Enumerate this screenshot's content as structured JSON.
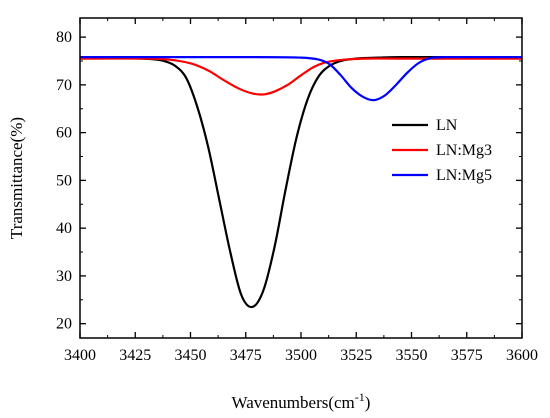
{
  "chart_data": {
    "type": "line",
    "xlabel": "Wavenumbers(cm",
    "xlabel_sup": "-1",
    "xlabel_tail": ")",
    "ylabel": "Transmittance(%)",
    "xlim": [
      3400,
      3600
    ],
    "ylim": [
      17,
      84
    ],
    "xticks": [
      3400,
      3425,
      3450,
      3475,
      3500,
      3525,
      3550,
      3575,
      3600
    ],
    "yticks": [
      20,
      30,
      40,
      50,
      60,
      70,
      80
    ],
    "grid": false,
    "legend_position": "right",
    "series": [
      {
        "name": "LN",
        "color": "#000000",
        "x": [
          3400,
          3420,
          3432,
          3438,
          3443,
          3448,
          3453,
          3458,
          3463,
          3468,
          3473,
          3478,
          3483,
          3488,
          3493,
          3498,
          3503,
          3508,
          3513,
          3518,
          3523,
          3528,
          3535,
          3545,
          3560,
          3600
        ],
        "y": [
          75.6,
          75.6,
          75.4,
          75.0,
          74.0,
          71.5,
          65.5,
          57.0,
          46.0,
          35.0,
          26.0,
          23.5,
          27.0,
          36.0,
          48.0,
          59.0,
          67.0,
          71.8,
          74.0,
          75.0,
          75.4,
          75.6,
          75.7,
          75.8,
          75.8,
          75.8
        ]
      },
      {
        "name": "LN:Mg3",
        "color": "#ff0000",
        "x": [
          3400,
          3430,
          3440,
          3450,
          3458,
          3465,
          3472,
          3478,
          3483,
          3488,
          3494,
          3500,
          3506,
          3512,
          3520,
          3530,
          3545,
          3600
        ],
        "y": [
          75.5,
          75.5,
          75.3,
          74.5,
          73.0,
          71.0,
          69.2,
          68.2,
          68.0,
          68.6,
          70.0,
          72.0,
          73.8,
          74.8,
          75.3,
          75.5,
          75.5,
          75.5
        ]
      },
      {
        "name": "LN:Mg5",
        "color": "#0000ff",
        "x": [
          3400,
          3480,
          3500,
          3508,
          3513,
          3518,
          3523,
          3528,
          3533,
          3538,
          3543,
          3548,
          3553,
          3558,
          3565,
          3600
        ],
        "y": [
          75.8,
          75.8,
          75.7,
          75.3,
          74.3,
          72.0,
          69.3,
          67.5,
          66.8,
          67.8,
          70.0,
          72.5,
          74.5,
          75.5,
          75.8,
          75.8
        ]
      }
    ]
  }
}
